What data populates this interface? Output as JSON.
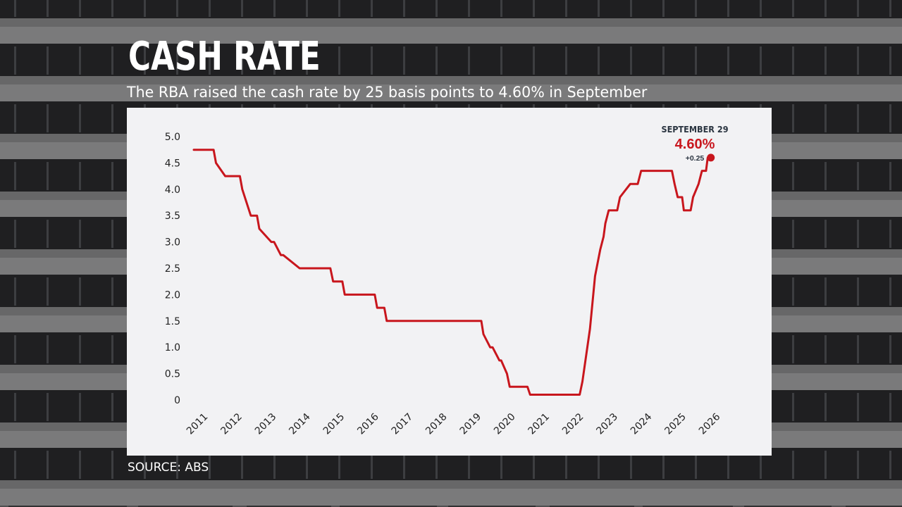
{
  "colors": {
    "line": "#c8161d",
    "annotation_date": "#2a3440",
    "annotation_value": "#c8161d",
    "panel": "#f2f2f4",
    "text": "#ffffff"
  },
  "chart_data": {
    "type": "line",
    "title": "CASH RATE",
    "subtitle": "The RBA raised the cash rate by 25 basis points to 4.60% in September",
    "source": "SOURCE: ABS",
    "xlabel": "",
    "ylabel": "",
    "xlim": [
      2011,
      2026.6
    ],
    "ylim": [
      0,
      5.0
    ],
    "x_ticks": [
      "2011",
      "2012",
      "2013",
      "2014",
      "2015",
      "2016",
      "2017",
      "2018",
      "2019",
      "2020",
      "2021",
      "2022",
      "2023",
      "2024",
      "2025",
      "2026"
    ],
    "y_ticks": [
      "0",
      "0.5",
      "1.0",
      "1.5",
      "2.0",
      "2.5",
      "3.0",
      "3.5",
      "4.0",
      "4.5",
      "5.0"
    ],
    "grid": false,
    "series": [
      {
        "x": [
          2011.0,
          2011.58,
          2011.65,
          2011.92,
          2012.0,
          2012.35,
          2012.42,
          2012.67,
          2012.73,
          2012.85,
          2012.92,
          2013.27,
          2013.35,
          2013.55,
          2013.62,
          2014.1,
          2015.0,
          2015.08,
          2015.35,
          2015.42,
          2016.3,
          2016.37,
          2016.58,
          2016.65,
          2017.0,
          2018.0,
          2019.0,
          2019.42,
          2019.48,
          2019.68,
          2019.75,
          2019.95,
          2020.0,
          2020.17,
          2020.25,
          2020.77,
          2020.85,
          2021.0,
          2022.0,
          2022.3,
          2022.38,
          2022.6,
          2022.75,
          2022.9,
          2023.0,
          2023.05,
          2023.15,
          2023.4,
          2023.48,
          2023.78,
          2023.85,
          2024.0,
          2024.1,
          2024.5,
          2025.0,
          2025.08,
          2025.17,
          2025.3,
          2025.35,
          2025.55,
          2025.62,
          2025.78,
          2025.88,
          2026.0,
          2026.05,
          2026.14
        ],
        "y": [
          4.75,
          4.75,
          4.5,
          4.25,
          4.25,
          4.25,
          4.0,
          3.5,
          3.5,
          3.5,
          3.25,
          3.0,
          3.0,
          2.75,
          2.75,
          2.5,
          2.5,
          2.25,
          2.25,
          2.0,
          2.0,
          1.75,
          1.75,
          1.5,
          1.5,
          1.5,
          1.5,
          1.5,
          1.25,
          1.0,
          1.0,
          0.75,
          0.75,
          0.5,
          0.25,
          0.25,
          0.1,
          0.1,
          0.1,
          0.1,
          0.35,
          1.35,
          2.35,
          2.85,
          3.1,
          3.35,
          3.6,
          3.6,
          3.85,
          4.1,
          4.1,
          4.1,
          4.35,
          4.35,
          4.35,
          4.1,
          3.85,
          3.85,
          3.6,
          3.6,
          3.85,
          4.1,
          4.35,
          4.35,
          4.6,
          4.6
        ]
      }
    ],
    "annotation": {
      "date": "SEPTEMBER 29",
      "value": "4.60%",
      "change": "+0.25",
      "x": 2026.14,
      "y": 4.6
    }
  }
}
